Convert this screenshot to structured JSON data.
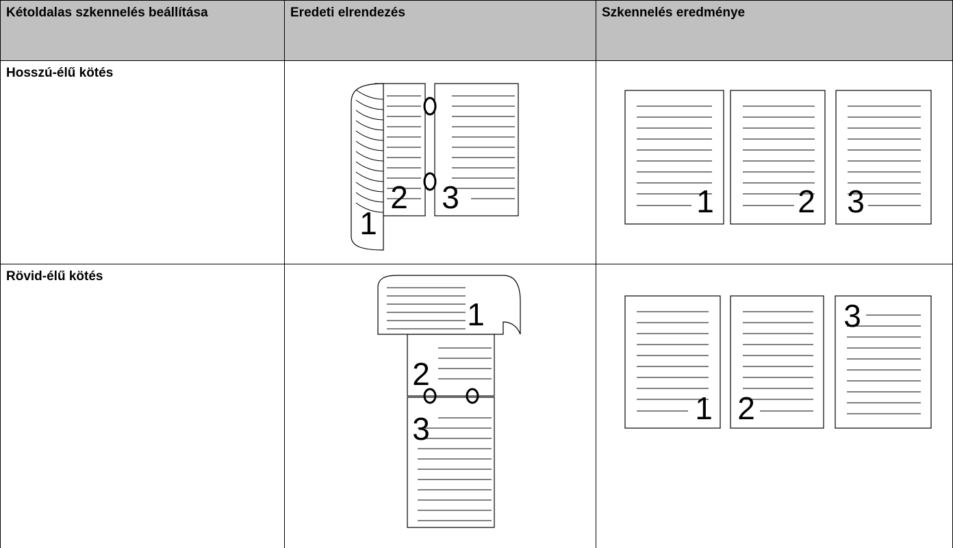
{
  "table": {
    "header": [
      "Kétoldalas szkennelés beállítása",
      "Eredeti elrendezés",
      "Szkennelés eredménye"
    ],
    "rows": [
      {
        "label": "Hosszú-élű kötés",
        "original_pages": [
          "1",
          "2",
          "3"
        ],
        "result_pages": [
          "1",
          "2",
          "3"
        ]
      },
      {
        "label": "Rövid-élű kötés",
        "original_pages": [
          "1",
          "2",
          "3"
        ],
        "result_pages": [
          "1",
          "2",
          "3"
        ]
      }
    ]
  }
}
